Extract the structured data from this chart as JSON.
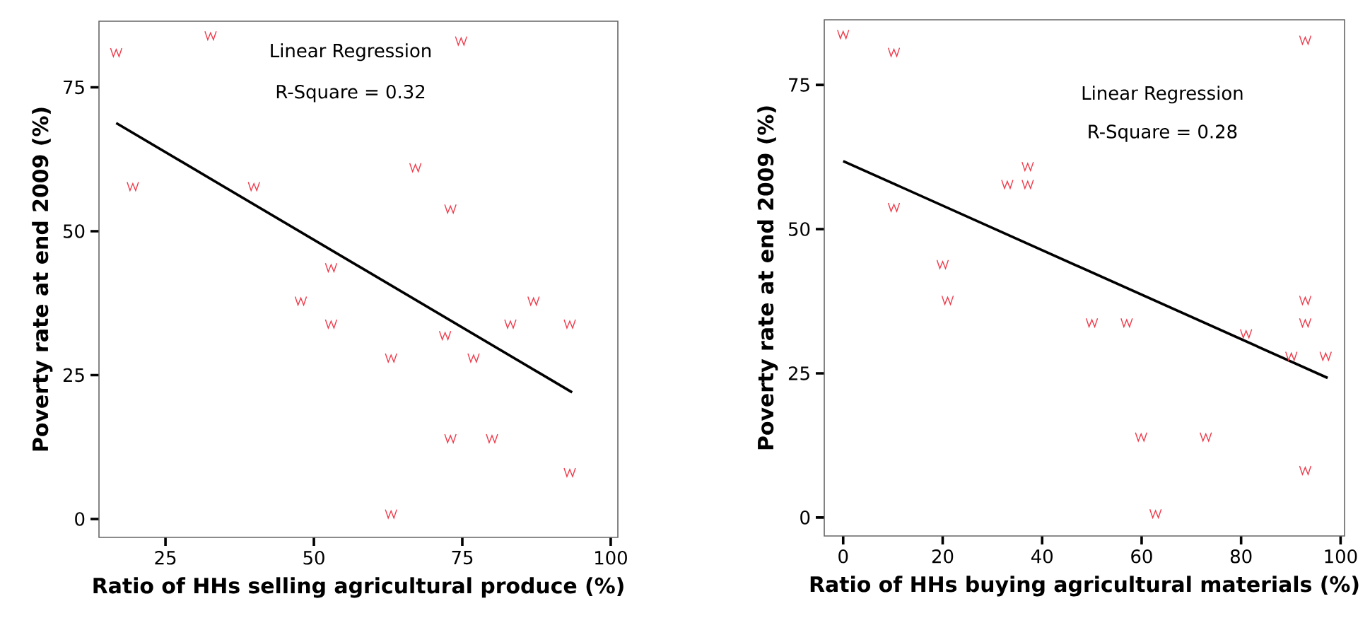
{
  "chart_data": [
    {
      "type": "scatter",
      "xlabel": "Ratio of HHs selling agricultural produce (%)",
      "ylabel": "Poverty rate at end 2009 (%)",
      "xlim": [
        13.8,
        101.2
      ],
      "ylim": [
        -3.2,
        86.5
      ],
      "xticks": [
        25,
        50,
        75,
        100
      ],
      "yticks": [
        0,
        25,
        50,
        75
      ],
      "annotations": [
        "Linear Regression",
        "R-Square = 0.32"
      ],
      "series": [
        {
          "color": "#ee3b4b",
          "x": [
            16.7,
            32.6,
            74.8,
            19.5,
            39.9,
            67.1,
            73,
            52.9,
            47.8,
            52.9,
            63,
            72.1,
            76.9,
            83.1,
            87,
            93.1,
            73,
            80,
            93.1,
            63
          ],
          "values": [
            81.1,
            84,
            83.1,
            57.8,
            57.8,
            61.1,
            53.9,
            43.7,
            37.9,
            33.9,
            28,
            31.9,
            28,
            33.9,
            37.9,
            33.9,
            14,
            14,
            8.1,
            0.9
          ]
        },
        {
          "type": "line",
          "color": "#000000",
          "x": [
            16.7,
            93.5
          ],
          "values": [
            68.8,
            22
          ]
        }
      ]
    },
    {
      "type": "scatter",
      "xlabel": "Ratio of HHs buying agricultural materials (%)",
      "ylabel": "Poverty rate at end 2009 (%)",
      "xlim": [
        -3.8,
        100.8
      ],
      "ylim": [
        -3.2,
        86.3
      ],
      "xticks": [
        0,
        20,
        40,
        60,
        80,
        100
      ],
      "yticks": [
        0,
        25,
        50,
        75
      ],
      "annotations": [
        "Linear Regression",
        "R-Square = 0.28"
      ],
      "series": [
        {
          "color": "#ee3b4b",
          "x": [
            0,
            10.2,
            10.2,
            33,
            37.1,
            37.1,
            20,
            21,
            50,
            57,
            81,
            90.1,
            97,
            92.9,
            92.9,
            92.9,
            59.9,
            72.9,
            92.9,
            62.8
          ],
          "values": [
            83.8,
            80.7,
            53.8,
            57.8,
            57.8,
            60.9,
            43.9,
            37.7,
            33.8,
            33.8,
            31.9,
            28,
            28,
            37.7,
            33.8,
            82.8,
            14,
            14,
            8.2,
            0.7
          ]
        },
        {
          "type": "line",
          "color": "#000000",
          "x": [
            0,
            97.4
          ],
          "values": [
            61.8,
            24.2
          ]
        }
      ]
    }
  ]
}
